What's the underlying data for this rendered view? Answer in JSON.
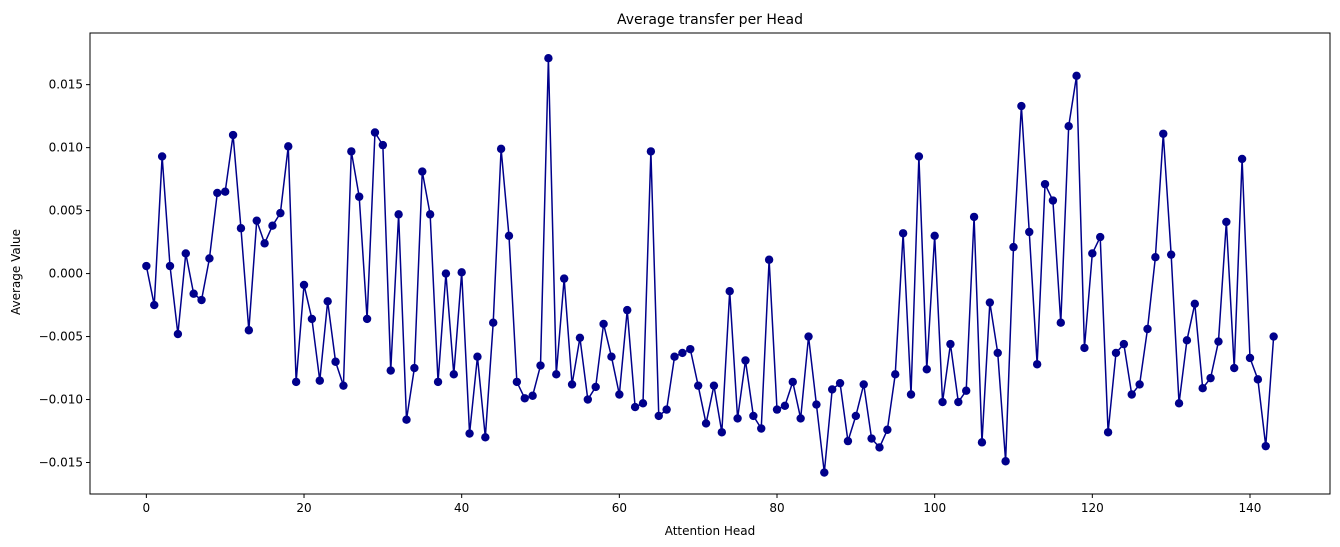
{
  "chart_data": {
    "type": "line",
    "title": "Average transfer per Head",
    "xlabel": "Attention Head",
    "ylabel": "Average Value",
    "xlim": [
      -7.15,
      150.15
    ],
    "ylim": [
      -0.0175,
      0.0191
    ],
    "xticks": [
      0,
      20,
      40,
      60,
      80,
      100,
      120,
      140
    ],
    "xtick_labels": [
      "0",
      "20",
      "40",
      "60",
      "80",
      "100",
      "120",
      "140"
    ],
    "yticks": [
      -0.015,
      -0.01,
      -0.005,
      0.0,
      0.005,
      0.01,
      0.015
    ],
    "ytick_labels": [
      "−0.015",
      "−0.010",
      "−0.005",
      "0.000",
      "0.005",
      "0.010",
      "0.015"
    ],
    "grid": false,
    "color": "#00008b",
    "marker": "circle",
    "series": [
      {
        "x": [
          0,
          1,
          2,
          3,
          4,
          5,
          6,
          7,
          8,
          9,
          10,
          11,
          12,
          13,
          14,
          15,
          16,
          17,
          18,
          19,
          20,
          21,
          22,
          23,
          24,
          25,
          26,
          27,
          28,
          29,
          30,
          31,
          32,
          33,
          34,
          35,
          36,
          37,
          38,
          39,
          40,
          41,
          42,
          43,
          44,
          45,
          46,
          47,
          48,
          49,
          50,
          51,
          52,
          53,
          54,
          55,
          56,
          57,
          58,
          59,
          60,
          61,
          62,
          63,
          64,
          65,
          66,
          67,
          68,
          69,
          70,
          71,
          72,
          73,
          74,
          75,
          76,
          77,
          78,
          79,
          80,
          81,
          82,
          83,
          84,
          85,
          86,
          87,
          88,
          89,
          90,
          91,
          92,
          93,
          94,
          95,
          96,
          97,
          98,
          99,
          100,
          101,
          102,
          103,
          104,
          105,
          106,
          107,
          108,
          109,
          110,
          111,
          112,
          113,
          114,
          115,
          116,
          117,
          118,
          119,
          120,
          121,
          122,
          123,
          124,
          125,
          126,
          127,
          128,
          129,
          130,
          131,
          132,
          133,
          134,
          135,
          136,
          137,
          138,
          139,
          140,
          141,
          142,
          143
        ],
        "values": [
          0.0006,
          -0.0025,
          0.0093,
          0.0006,
          -0.0048,
          0.0016,
          -0.0016,
          -0.0021,
          0.0012,
          0.0064,
          0.0065,
          0.011,
          0.0036,
          -0.0045,
          0.0042,
          0.0024,
          0.0038,
          0.0048,
          0.0101,
          -0.0086,
          -0.0009,
          -0.0036,
          -0.0085,
          -0.0022,
          -0.007,
          -0.0089,
          0.0097,
          0.0061,
          -0.0036,
          0.0112,
          0.0102,
          -0.0077,
          0.0047,
          -0.0116,
          -0.0075,
          0.0081,
          0.0047,
          -0.0086,
          0.0,
          -0.008,
          0.0001,
          -0.0127,
          -0.0066,
          -0.013,
          -0.0039,
          0.0099,
          0.003,
          -0.0086,
          -0.0099,
          -0.0097,
          -0.0073,
          0.0171,
          -0.008,
          -0.0004,
          -0.0088,
          -0.0051,
          -0.01,
          -0.009,
          -0.004,
          -0.0066,
          -0.0096,
          -0.0029,
          -0.0106,
          -0.0103,
          0.0097,
          -0.0113,
          -0.0108,
          -0.0066,
          -0.0063,
          -0.006,
          -0.0089,
          -0.0119,
          -0.0089,
          -0.0126,
          -0.0014,
          -0.0115,
          -0.0069,
          -0.0113,
          -0.0123,
          0.0011,
          -0.0108,
          -0.0105,
          -0.0086,
          -0.0115,
          -0.005,
          -0.0104,
          -0.0158,
          -0.0092,
          -0.0087,
          -0.0133,
          -0.0113,
          -0.0088,
          -0.0131,
          -0.0138,
          -0.0124,
          -0.008,
          0.0032,
          -0.0096,
          0.0093,
          -0.0076,
          0.003,
          -0.0102,
          -0.0056,
          -0.0102,
          -0.0093,
          0.0045,
          -0.0134,
          -0.0023,
          -0.0063,
          -0.0149,
          0.0021,
          0.0133,
          0.0033,
          -0.0072,
          0.0071,
          0.0058,
          -0.0039,
          0.0117,
          0.0157,
          -0.0059,
          0.0016,
          0.0029,
          -0.0126,
          -0.0063,
          -0.0056,
          -0.0096,
          -0.0088,
          -0.0044,
          0.0013,
          0.0111,
          0.0015,
          -0.0103,
          -0.0053,
          -0.0024,
          -0.0091,
          -0.0083,
          -0.0054,
          0.0041,
          -0.0075,
          0.0091,
          -0.0067,
          -0.0084,
          -0.0137,
          -0.005
        ]
      }
    ]
  }
}
